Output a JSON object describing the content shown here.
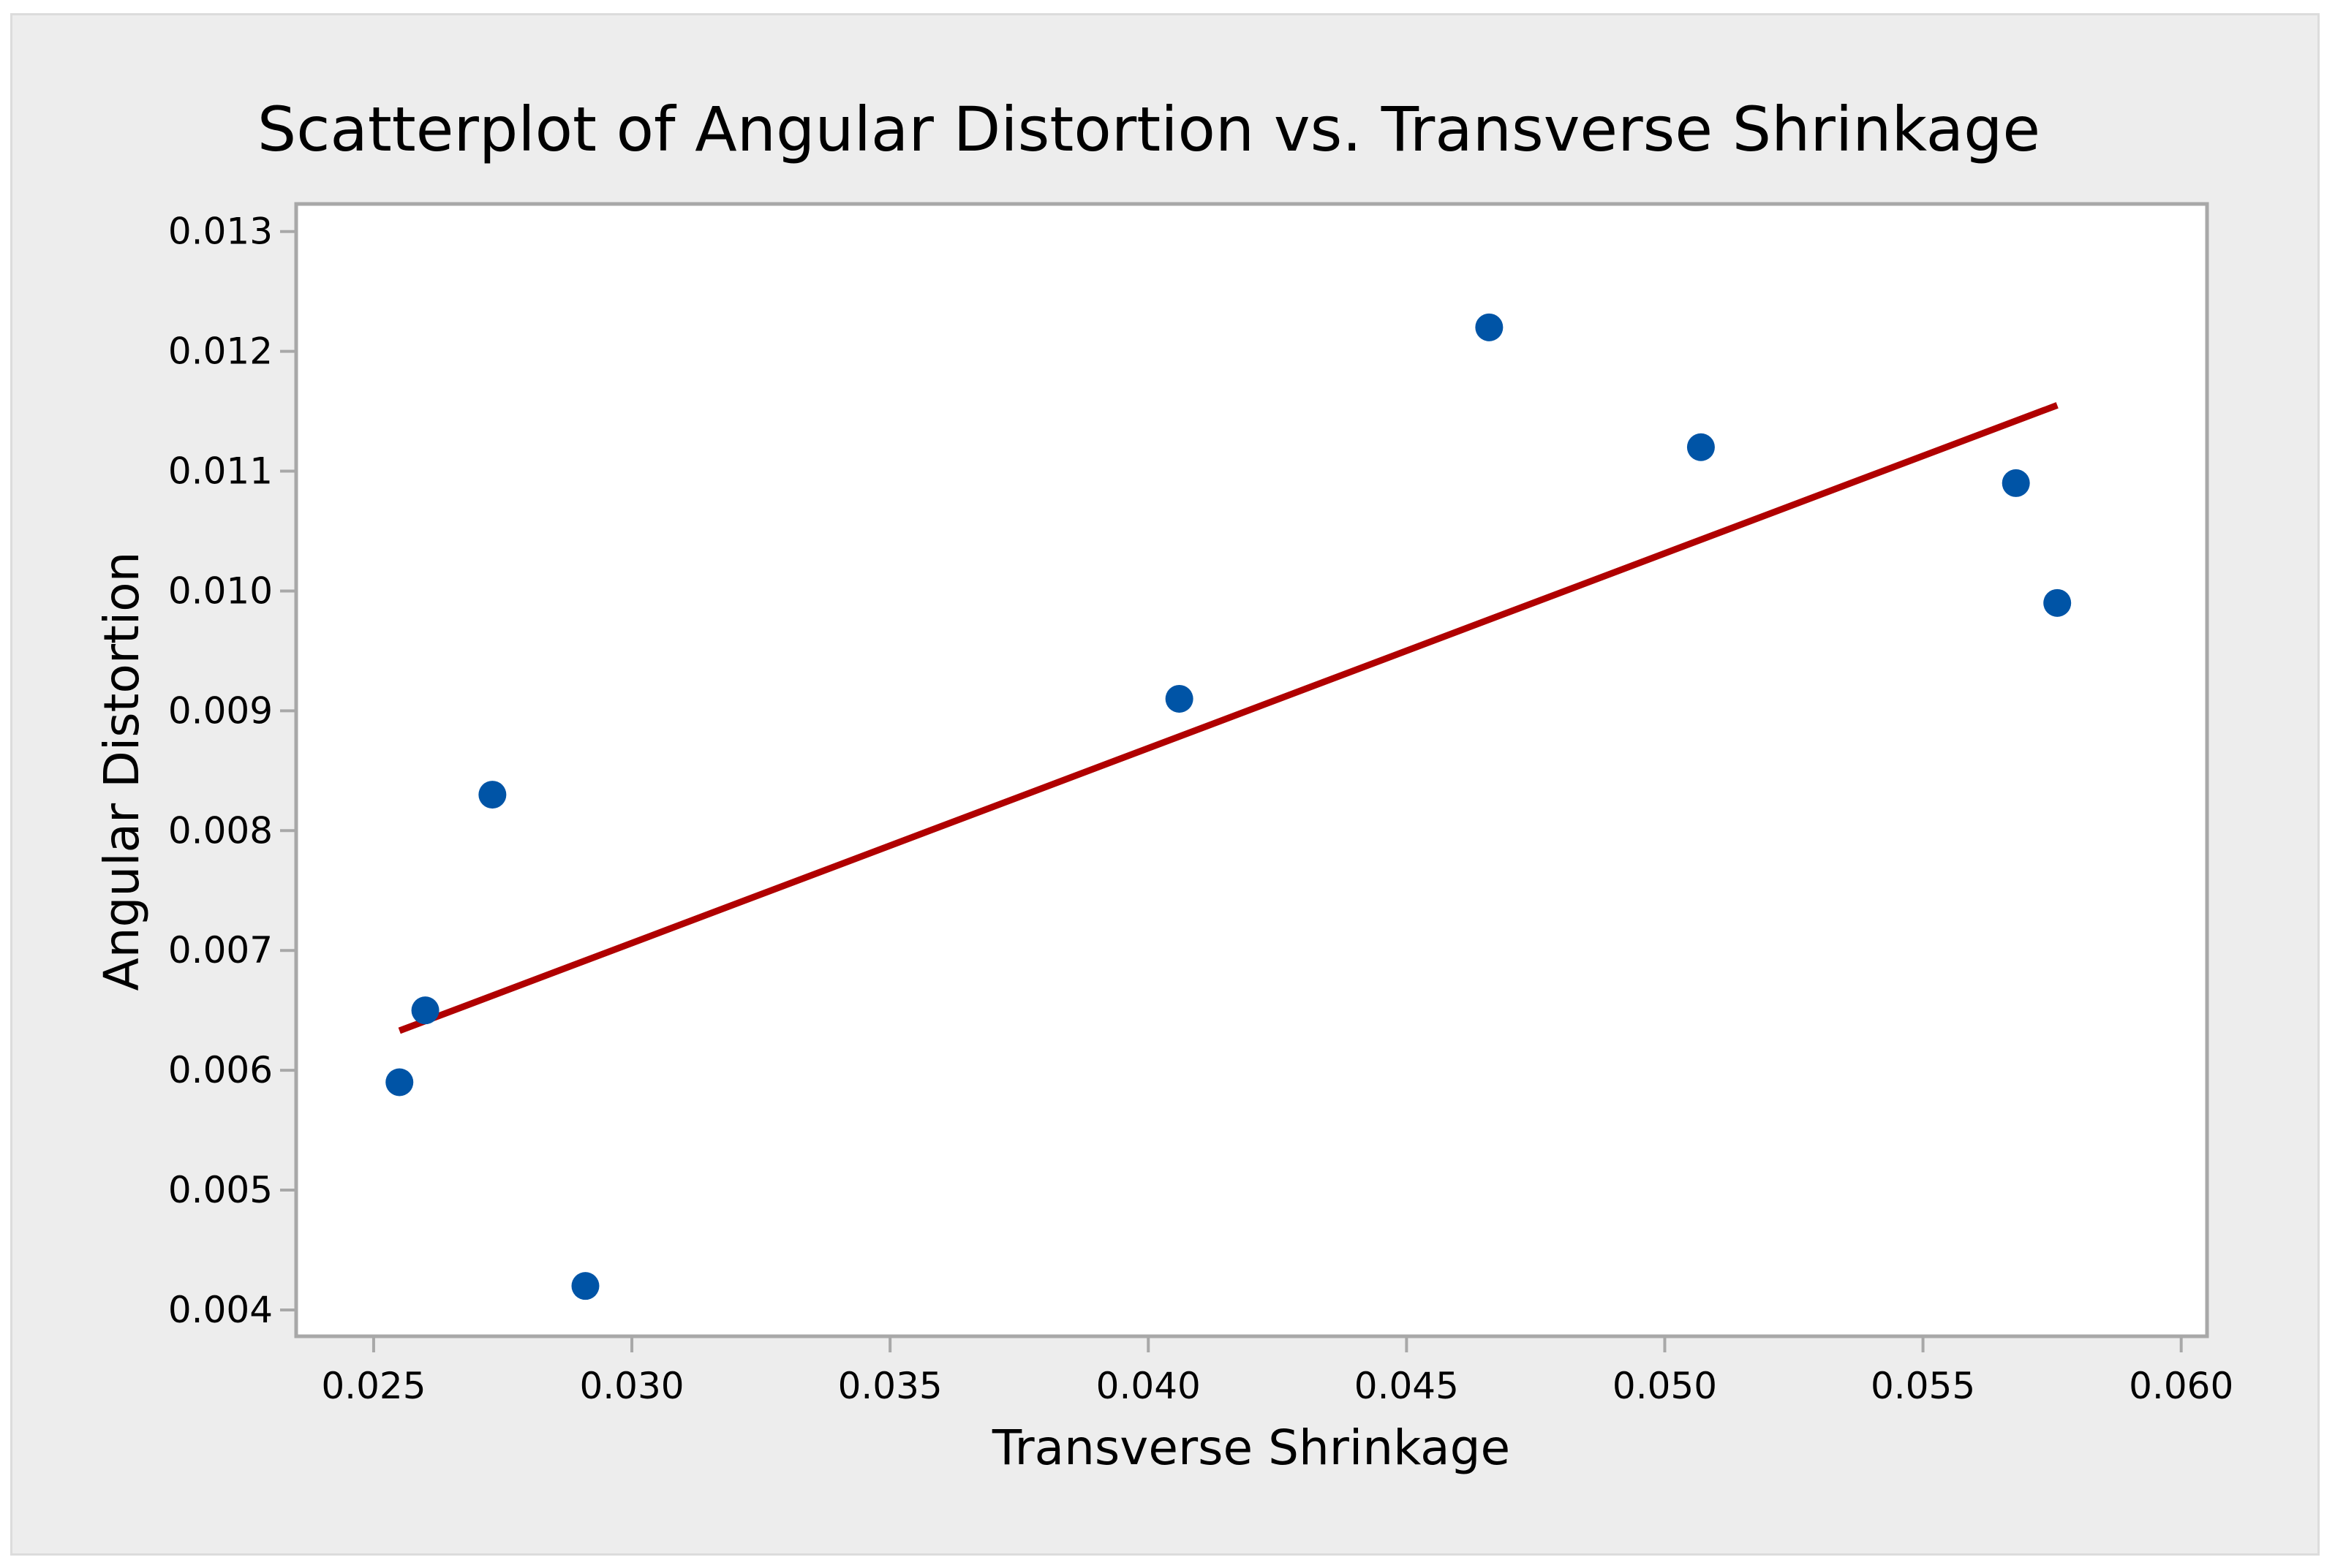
{
  "chart_data": {
    "type": "scatter",
    "title": "Scatterplot of Angular Distortion vs. Transverse Shrinkage",
    "xlabel": "Transverse Shrinkage",
    "ylabel": "Angular Distortion",
    "xlim": [
      0.0235,
      0.0605
    ],
    "ylim": [
      0.00378,
      0.01323
    ],
    "xticks": [
      "0.025",
      "0.030",
      "0.035",
      "0.040",
      "0.045",
      "0.050",
      "0.055",
      "0.060"
    ],
    "yticks": [
      "0.004",
      "0.005",
      "0.006",
      "0.007",
      "0.008",
      "0.009",
      "0.010",
      "0.011",
      "0.012",
      "0.013"
    ],
    "grid": false,
    "series": [
      {
        "x": [
          0.0255,
          0.026,
          0.0273,
          0.0291,
          0.0406,
          0.0466,
          0.0507,
          0.0568,
          0.0576
        ],
        "y": [
          0.0059,
          0.0065,
          0.0083,
          0.0042,
          0.0091,
          0.0122,
          0.0112,
          0.0109,
          0.0099
        ],
        "marker_color": "#0054a6"
      }
    ],
    "fit_line": {
      "x": [
        0.0255,
        0.0576
      ],
      "y": [
        0.00633,
        0.01155
      ],
      "color": "#b00000"
    },
    "colors": {
      "frame_background": "#ededed",
      "plot_background": "#ffffff",
      "axis": "#a8a8a8"
    }
  }
}
